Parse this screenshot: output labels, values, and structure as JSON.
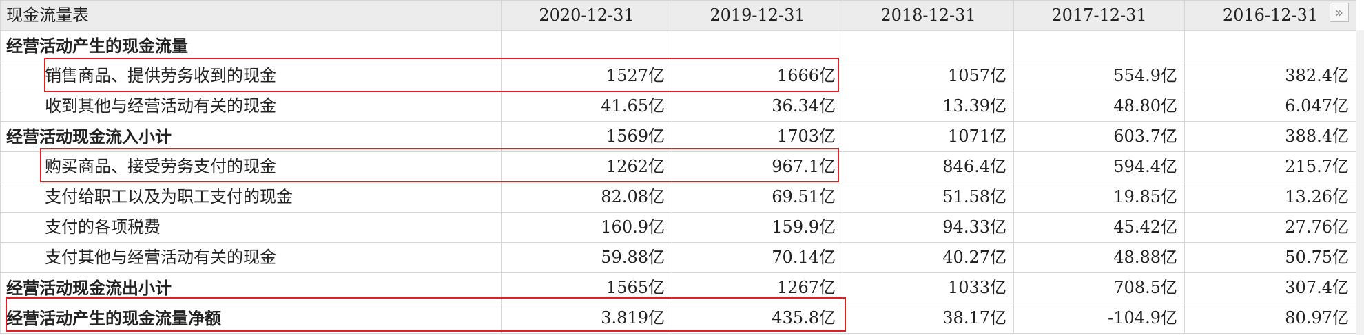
{
  "table": {
    "title": "现金流量表",
    "columns": [
      "2020-12-31",
      "2019-12-31",
      "2018-12-31",
      "2017-12-31",
      "2016-12-31"
    ],
    "expand_glyph": "»",
    "rows": [
      {
        "label": "经营活动产生的现金流量",
        "values": [
          "",
          "",
          "",
          "",
          ""
        ]
      },
      {
        "label": "销售商品、提供劳务收到的现金",
        "values": [
          "1527亿",
          "1666亿",
          "1057亿",
          "554.9亿",
          "382.4亿"
        ]
      },
      {
        "label": "收到其他与经营活动有关的现金",
        "values": [
          "41.65亿",
          "36.34亿",
          "13.39亿",
          "48.80亿",
          "6.047亿"
        ]
      },
      {
        "label": "经营活动现金流入小计",
        "values": [
          "1569亿",
          "1703亿",
          "1071亿",
          "603.7亿",
          "388.4亿"
        ]
      },
      {
        "label": "购买商品、接受劳务支付的现金",
        "values": [
          "1262亿",
          "967.1亿",
          "846.4亿",
          "594.4亿",
          "215.7亿"
        ]
      },
      {
        "label": "支付给职工以及为职工支付的现金",
        "values": [
          "82.08亿",
          "69.51亿",
          "51.58亿",
          "19.85亿",
          "13.26亿"
        ]
      },
      {
        "label": "支付的各项税费",
        "values": [
          "160.9亿",
          "159.9亿",
          "94.33亿",
          "45.42亿",
          "27.76亿"
        ]
      },
      {
        "label": "支付其他与经营活动有关的现金",
        "values": [
          "59.88亿",
          "70.14亿",
          "40.27亿",
          "48.88亿",
          "50.75亿"
        ]
      },
      {
        "label": "经营活动现金流出小计",
        "values": [
          "1565亿",
          "1267亿",
          "1033亿",
          "708.5亿",
          "307.4亿"
        ]
      },
      {
        "label": "经营活动产生的现金流量净额",
        "values": [
          "3.819亿",
          "435.8亿",
          "38.17亿",
          "-104.9亿",
          "80.97亿"
        ]
      }
    ]
  },
  "highlight_color": "#e02020"
}
